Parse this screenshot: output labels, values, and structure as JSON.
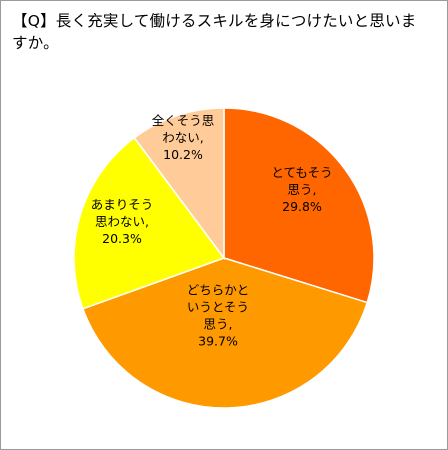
{
  "chart_data": {
    "type": "pie",
    "title": "【Q】長く充実して働けるスキルを身につけたいと思いますか。",
    "slices": [
      {
        "label": [
          "とてもそう",
          "思う,",
          "29.8%"
        ],
        "value": 29.8,
        "color": "#ff6600"
      },
      {
        "label": [
          "どちらかと",
          "いうとそう",
          "思う,",
          "39.7%"
        ],
        "value": 39.7,
        "color": "#ff9900"
      },
      {
        "label": [
          "あまりそう",
          "思わない,",
          "20.3%"
        ],
        "value": 20.3,
        "color": "#ffff00"
      },
      {
        "label": [
          "全くそう思",
          "わない,",
          "10.2%"
        ],
        "value": 10.2,
        "color": "#ffcc99"
      }
    ]
  }
}
